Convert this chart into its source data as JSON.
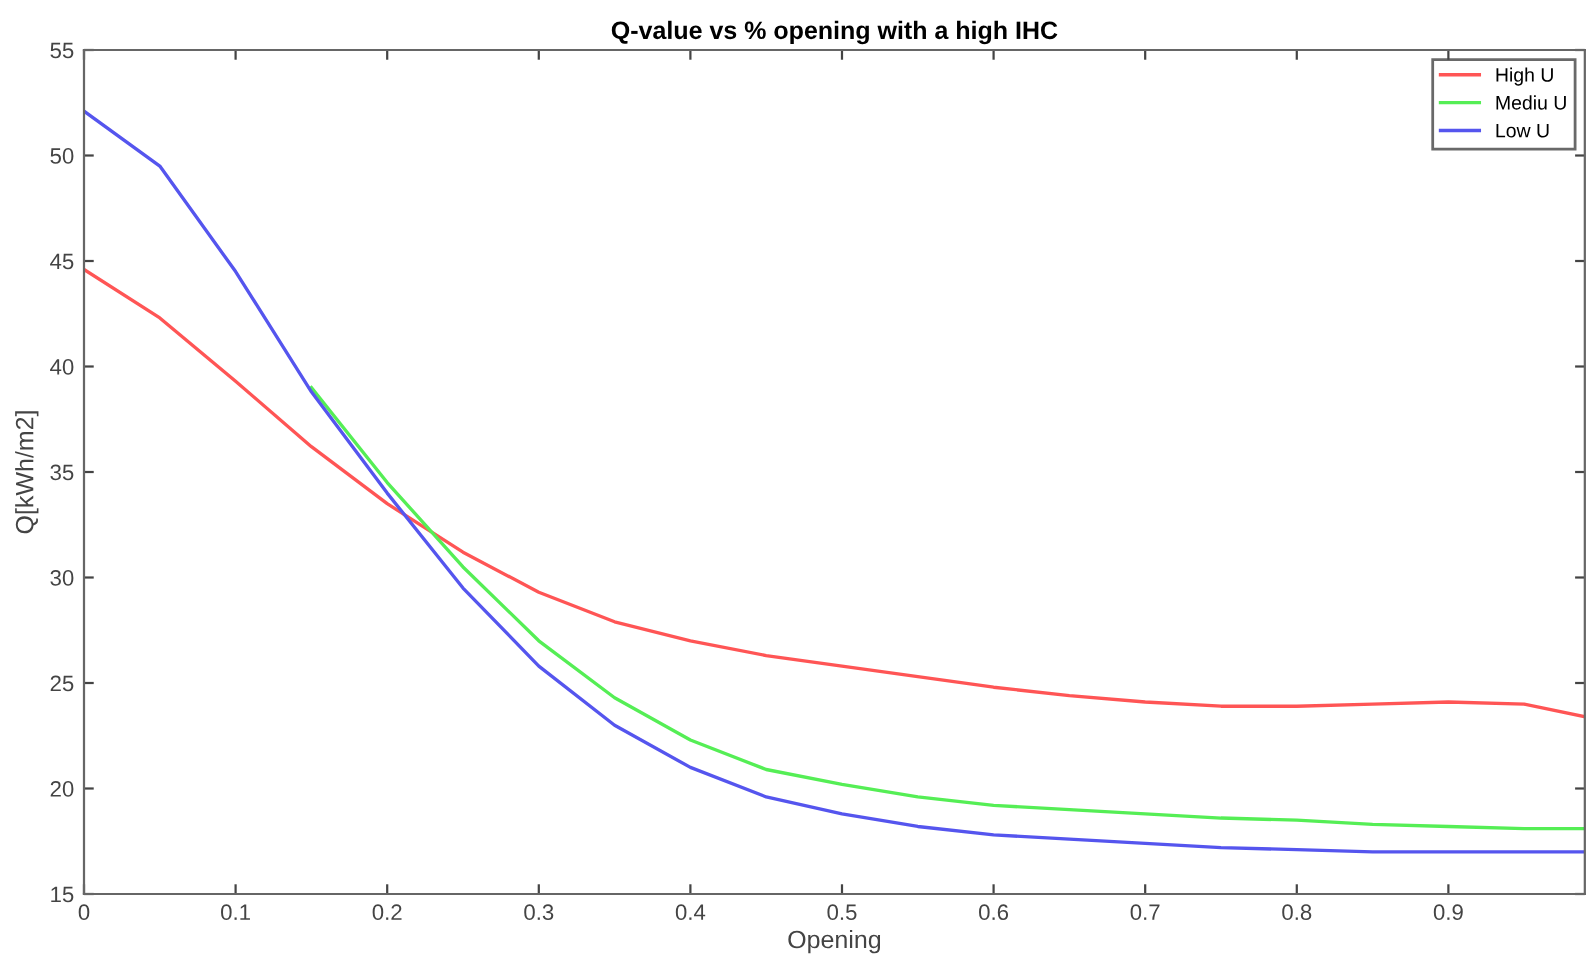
{
  "chart_data": {
    "type": "line",
    "title": "Q-value vs % opening with a high IHC",
    "xlabel": "Opening",
    "ylabel": "Q[kWh/m2]",
    "x": [
      0,
      0.05,
      0.1,
      0.15,
      0.2,
      0.25,
      0.3,
      0.35,
      0.4,
      0.45,
      0.5,
      0.55,
      0.6,
      0.65,
      0.7,
      0.75,
      0.8,
      0.85,
      0.9,
      0.95,
      0.99
    ],
    "series": [
      {
        "name": "High U",
        "color": "#ff5555",
        "values": [
          44.6,
          42.3,
          39.3,
          36.2,
          33.5,
          31.2,
          29.3,
          27.9,
          27.0,
          26.3,
          25.8,
          25.3,
          24.8,
          24.4,
          24.1,
          23.9,
          23.9,
          24.0,
          24.1,
          24.0,
          23.4
        ]
      },
      {
        "name": "Mediu U",
        "color": "#55ee55",
        "values": [
          null,
          null,
          null,
          39.0,
          34.5,
          30.5,
          27.0,
          24.3,
          22.3,
          20.9,
          20.2,
          19.6,
          19.2,
          19.0,
          18.8,
          18.6,
          18.5,
          18.3,
          18.2,
          18.1,
          18.1
        ]
      },
      {
        "name": "Low U",
        "color": "#5555ee",
        "values": [
          52.1,
          49.5,
          44.5,
          38.8,
          34.0,
          29.5,
          25.8,
          23.0,
          21.0,
          19.6,
          18.8,
          18.2,
          17.8,
          17.6,
          17.4,
          17.2,
          17.1,
          17.0,
          17.0,
          17.0,
          17.0
        ]
      }
    ],
    "xlim": [
      0,
      0.99
    ],
    "xticks": [
      0,
      0.1,
      0.2,
      0.3,
      0.4,
      0.5,
      0.6,
      0.7,
      0.8,
      0.9
    ],
    "ylim": [
      15,
      55
    ],
    "yticks": [
      15,
      20,
      25,
      30,
      35,
      40,
      45,
      50,
      55
    ],
    "legend": "top right",
    "grid": false
  }
}
